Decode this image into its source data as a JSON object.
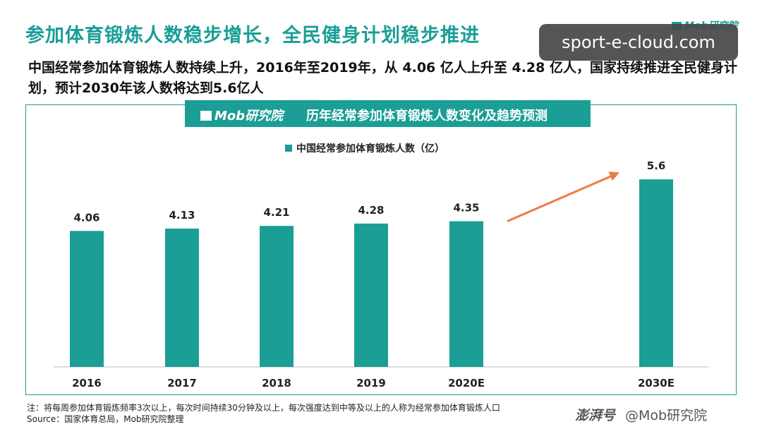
{
  "headline": "参加体育锻炼人数稳步增长，全民健身计划稳步推进",
  "brand_top": "Mob研究院",
  "site_badge": "sport-e-cloud.com",
  "subtitle": "中国经常参加体育锻炼人数持续上升，2016年至2019年，从 4.06 亿人上升至 4.28 亿人，国家持续推进全民健身计划，预计2030年该人数将达到5.6亿人",
  "banner": {
    "logo": "Mob研究院",
    "title": "历年经常参加体育锻炼人数变化及趋势预测"
  },
  "chart_data": {
    "type": "bar",
    "title": "历年经常参加体育锻炼人数变化及趋势预测",
    "categories": [
      "2016",
      "2017",
      "2018",
      "2019",
      "2020E",
      "2030E"
    ],
    "series": [
      {
        "name": "中国经常参加体育锻炼人数（亿）",
        "values": [
          4.06,
          4.13,
          4.21,
          4.28,
          4.35,
          5.6
        ]
      }
    ],
    "ylim": [
      0,
      6.7
    ],
    "grid": false,
    "legend": "top-center",
    "annotation": "arrow from 2020E to 2030E"
  },
  "colors": {
    "accent": "#1a9e96",
    "arrow": "#ee7b44"
  },
  "footnote": {
    "note": "注：将每周参加体育锻炼频率3次以上，每次时间持续30分钟及以上，每次强度达到中等及以上的人称为经常参加体育锻炼人口",
    "source": "Source：国家体育总局，Mob研究院整理"
  },
  "watermark": {
    "platform": "澎湃号",
    "account": "@Mob研究院"
  }
}
